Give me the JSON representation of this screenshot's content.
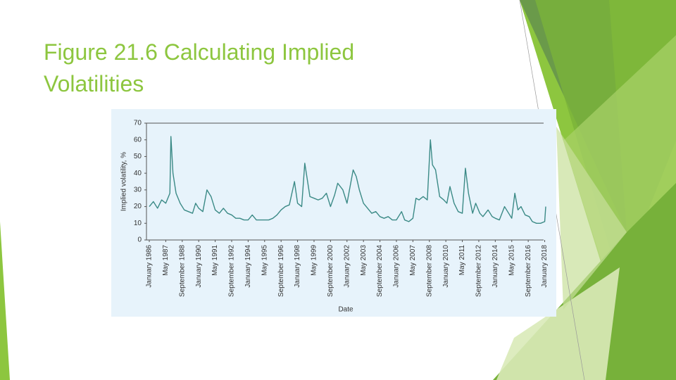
{
  "slide": {
    "title": "Figure 21.6 Calculating Implied Volatilities"
  },
  "chart_data": {
    "type": "line",
    "x_label": "Date",
    "y_label": "Implied volatility, %",
    "xlim": [
      "1986-01",
      "2018-02"
    ],
    "ylim": [
      0,
      70
    ],
    "yticks": [
      0,
      10,
      20,
      30,
      40,
      50,
      60,
      70
    ],
    "xticks": [
      {
        "value": "1986-01",
        "label": "January 1986"
      },
      {
        "value": "1987-05",
        "label": "May 1987"
      },
      {
        "value": "1988-09",
        "label": "September 1988"
      },
      {
        "value": "1990-01",
        "label": "January 1990"
      },
      {
        "value": "1991-05",
        "label": "May 1991"
      },
      {
        "value": "1992-09",
        "label": "September 1992"
      },
      {
        "value": "1994-01",
        "label": "January 1994"
      },
      {
        "value": "1995-05",
        "label": "May 1995"
      },
      {
        "value": "1996-09",
        "label": "September 1996"
      },
      {
        "value": "1998-01",
        "label": "January 1998"
      },
      {
        "value": "1999-05",
        "label": "May 1999"
      },
      {
        "value": "2000-09",
        "label": "September 2000"
      },
      {
        "value": "2002-01",
        "label": "January 2002"
      },
      {
        "value": "2003-05",
        "label": "May 2003"
      },
      {
        "value": "2004-09",
        "label": "September 2004"
      },
      {
        "value": "2006-01",
        "label": "January 2006"
      },
      {
        "value": "2007-05",
        "label": "May 2007"
      },
      {
        "value": "2008-09",
        "label": "September 2008"
      },
      {
        "value": "2010-01",
        "label": "January 2010"
      },
      {
        "value": "2011-05",
        "label": "May 2011"
      },
      {
        "value": "2012-09",
        "label": "September 2012"
      },
      {
        "value": "2014-01",
        "label": "January 2014"
      },
      {
        "value": "2015-05",
        "label": "May 2015"
      },
      {
        "value": "2016-09",
        "label": "September 2016"
      },
      {
        "value": "2018-01",
        "label": "January 2018"
      }
    ],
    "grid": false,
    "x": [
      "1986-01",
      "1986-05",
      "1986-09",
      "1987-01",
      "1987-05",
      "1987-09",
      "1987-10",
      "1987-12",
      "1988-03",
      "1988-07",
      "1988-11",
      "1989-03",
      "1989-07",
      "1989-10",
      "1990-01",
      "1990-05",
      "1990-09",
      "1991-01",
      "1991-05",
      "1991-09",
      "1992-01",
      "1992-05",
      "1992-09",
      "1993-01",
      "1993-05",
      "1993-09",
      "1994-01",
      "1994-05",
      "1994-09",
      "1995-01",
      "1995-05",
      "1995-09",
      "1996-01",
      "1996-05",
      "1996-09",
      "1997-01",
      "1997-05",
      "1997-10",
      "1998-01",
      "1998-05",
      "1998-08",
      "1998-10",
      "1999-01",
      "1999-05",
      "1999-09",
      "2000-01",
      "2000-05",
      "2000-09",
      "2001-01",
      "2001-04",
      "2001-09",
      "2002-01",
      "2002-07",
      "2002-10",
      "2003-01",
      "2003-05",
      "2003-09",
      "2004-01",
      "2004-05",
      "2004-09",
      "2005-01",
      "2005-05",
      "2005-09",
      "2006-01",
      "2006-06",
      "2006-09",
      "2007-01",
      "2007-05",
      "2007-08",
      "2007-11",
      "2008-03",
      "2008-07",
      "2008-10",
      "2008-12",
      "2009-03",
      "2009-07",
      "2009-11",
      "2010-02",
      "2010-05",
      "2010-09",
      "2011-01",
      "2011-05",
      "2011-08",
      "2011-11",
      "2012-03",
      "2012-06",
      "2012-10",
      "2013-01",
      "2013-06",
      "2013-10",
      "2014-01",
      "2014-05",
      "2014-10",
      "2015-01",
      "2015-05",
      "2015-08",
      "2015-11",
      "2016-02",
      "2016-06",
      "2016-10",
      "2017-01",
      "2017-05",
      "2017-09",
      "2018-01",
      "2018-02"
    ],
    "series": [
      {
        "color": "#3b8a86",
        "values": [
          20,
          23,
          19,
          24,
          22,
          28,
          62,
          40,
          28,
          22,
          18,
          17,
          16,
          22,
          19,
          17,
          30,
          26,
          18,
          16,
          19,
          16,
          15,
          13,
          13,
          12,
          12,
          15,
          12,
          12,
          12,
          12,
          13,
          15,
          18,
          20,
          21,
          35,
          22,
          20,
          46,
          38,
          26,
          25,
          24,
          25,
          28,
          20,
          27,
          34,
          30,
          22,
          42,
          38,
          30,
          22,
          19,
          16,
          17,
          14,
          13,
          14,
          12,
          12,
          17,
          12,
          11,
          13,
          25,
          24,
          26,
          24,
          60,
          45,
          42,
          26,
          24,
          22,
          32,
          22,
          17,
          16,
          43,
          28,
          16,
          22,
          16,
          14,
          18,
          14,
          13,
          12,
          20,
          17,
          13,
          28,
          18,
          20,
          15,
          14,
          11,
          10,
          10,
          11,
          20
        ]
      }
    ]
  }
}
